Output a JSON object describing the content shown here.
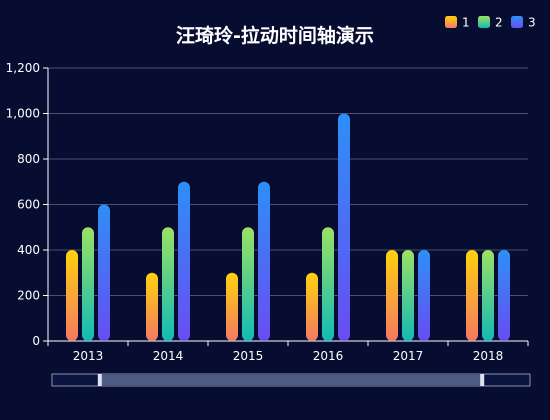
{
  "chart_data": {
    "type": "bar",
    "title": "汪琦玲-拉动时间轴演示",
    "categories": [
      "2013",
      "2014",
      "2015",
      "2016",
      "2017",
      "2018"
    ],
    "series": [
      {
        "name": "1",
        "values": [
          400,
          300,
          300,
          300,
          400,
          400
        ],
        "colors": [
          "#ffd10e",
          "#f47a61"
        ]
      },
      {
        "name": "2",
        "values": [
          500,
          500,
          500,
          500,
          400,
          400
        ],
        "colors": [
          "#9be162",
          "#13b9b6"
        ]
      },
      {
        "name": "3",
        "values": [
          600,
          700,
          700,
          1000,
          400,
          400
        ],
        "colors": [
          "#2d8ff7",
          "#6a4cf2"
        ]
      }
    ],
    "ylim": [
      0,
      1200
    ],
    "yticks": [
      "0",
      "200",
      "400",
      "600",
      "800",
      "1,000",
      "1,200"
    ],
    "grid": true,
    "legend_position": "top-right",
    "datazoom": {
      "start_fraction": 0.1,
      "end_fraction": 0.9
    }
  },
  "colors": {
    "background": "#070d30",
    "text": "#ffffff",
    "grid": "#4a5072"
  }
}
